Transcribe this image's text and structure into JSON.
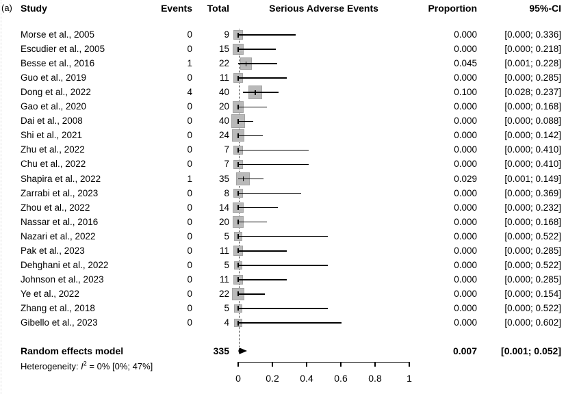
{
  "figure": {
    "panel_label": "(a)",
    "columns": {
      "study": "Study",
      "events": "Events",
      "total": "Total",
      "plot": "Serious Adverse Events",
      "proportion": "Proportion",
      "ci": "95%-CI"
    }
  },
  "chart_data": {
    "type": "forest",
    "title": "Serious Adverse Events",
    "x_axis": {
      "range": [
        0,
        1
      ],
      "ticks": [
        0,
        0.2,
        0.4,
        0.6,
        0.8,
        1
      ],
      "tick_labels": [
        "0",
        "0.2",
        "0.4",
        "0.6",
        "0.8",
        "1"
      ]
    },
    "reference_line": 0.007,
    "studies": [
      {
        "name": "Morse et al., 2005",
        "events": "0",
        "total": "9",
        "proportion": 0.0,
        "ci_lower": 0.0,
        "ci_upper": 0.336,
        "proportion_label": "0.000",
        "ci_label": "[0.000; 0.336]"
      },
      {
        "name": "Escudier et al., 2005",
        "events": "0",
        "total": "15",
        "proportion": 0.0,
        "ci_lower": 0.0,
        "ci_upper": 0.218,
        "proportion_label": "0.000",
        "ci_label": "[0.000; 0.218]"
      },
      {
        "name": "Besse et al., 2016",
        "events": "1",
        "total": "22",
        "proportion": 0.045,
        "ci_lower": 0.001,
        "ci_upper": 0.228,
        "proportion_label": "0.045",
        "ci_label": "[0.001; 0.228]"
      },
      {
        "name": "Guo et al., 2019",
        "events": "0",
        "total": "11",
        "proportion": 0.0,
        "ci_lower": 0.0,
        "ci_upper": 0.285,
        "proportion_label": "0.000",
        "ci_label": "[0.000; 0.285]"
      },
      {
        "name": "Dong et al., 2022",
        "events": "4",
        "total": "40",
        "proportion": 0.1,
        "ci_lower": 0.028,
        "ci_upper": 0.237,
        "proportion_label": "0.100",
        "ci_label": "[0.028; 0.237]"
      },
      {
        "name": "Gao et al., 2020",
        "events": "0",
        "total": "20",
        "proportion": 0.0,
        "ci_lower": 0.0,
        "ci_upper": 0.168,
        "proportion_label": "0.000",
        "ci_label": "[0.000; 0.168]"
      },
      {
        "name": "Dai et al., 2008",
        "events": "0",
        "total": "40",
        "proportion": 0.0,
        "ci_lower": 0.0,
        "ci_upper": 0.088,
        "proportion_label": "0.000",
        "ci_label": "[0.000; 0.088]"
      },
      {
        "name": "Shi et al., 2021",
        "events": "0",
        "total": "24",
        "proportion": 0.0,
        "ci_lower": 0.0,
        "ci_upper": 0.142,
        "proportion_label": "0.000",
        "ci_label": "[0.000; 0.142]"
      },
      {
        "name": "Zhu et al., 2022",
        "events": "0",
        "total": "7",
        "proportion": 0.0,
        "ci_lower": 0.0,
        "ci_upper": 0.41,
        "proportion_label": "0.000",
        "ci_label": "[0.000; 0.410]"
      },
      {
        "name": "Chu et al., 2022",
        "events": "0",
        "total": "7",
        "proportion": 0.0,
        "ci_lower": 0.0,
        "ci_upper": 0.41,
        "proportion_label": "0.000",
        "ci_label": "[0.000; 0.410]"
      },
      {
        "name": "Shapira et al., 2022",
        "events": "1",
        "total": "35",
        "proportion": 0.029,
        "ci_lower": 0.001,
        "ci_upper": 0.149,
        "proportion_label": "0.029",
        "ci_label": "[0.001; 0.149]"
      },
      {
        "name": "Zarrabi et al., 2023",
        "events": "0",
        "total": "8",
        "proportion": 0.0,
        "ci_lower": 0.0,
        "ci_upper": 0.369,
        "proportion_label": "0.000",
        "ci_label": "[0.000; 0.369]"
      },
      {
        "name": "Zhou et al., 2022",
        "events": "0",
        "total": "14",
        "proportion": 0.0,
        "ci_lower": 0.0,
        "ci_upper": 0.232,
        "proportion_label": "0.000",
        "ci_label": "[0.000; 0.232]"
      },
      {
        "name": "Nassar et al., 2016",
        "events": "0",
        "total": "20",
        "proportion": 0.0,
        "ci_lower": 0.0,
        "ci_upper": 0.168,
        "proportion_label": "0.000",
        "ci_label": "[0.000; 0.168]"
      },
      {
        "name": "Nazari et al., 2022",
        "events": "0",
        "total": "5",
        "proportion": 0.0,
        "ci_lower": 0.0,
        "ci_upper": 0.522,
        "proportion_label": "0.000",
        "ci_label": "[0.000; 0.522]"
      },
      {
        "name": "Pak et al., 2023",
        "events": "0",
        "total": "11",
        "proportion": 0.0,
        "ci_lower": 0.0,
        "ci_upper": 0.285,
        "proportion_label": "0.000",
        "ci_label": "[0.000; 0.285]"
      },
      {
        "name": "Dehghani et al., 2022",
        "events": "0",
        "total": "5",
        "proportion": 0.0,
        "ci_lower": 0.0,
        "ci_upper": 0.522,
        "proportion_label": "0.000",
        "ci_label": "[0.000; 0.522]"
      },
      {
        "name": "Johnson et al., 2023",
        "events": "0",
        "total": "11",
        "proportion": 0.0,
        "ci_lower": 0.0,
        "ci_upper": 0.285,
        "proportion_label": "0.000",
        "ci_label": "[0.000; 0.285]"
      },
      {
        "name": "Ye et al., 2022",
        "events": "0",
        "total": "22",
        "proportion": 0.0,
        "ci_lower": 0.0,
        "ci_upper": 0.154,
        "proportion_label": "0.000",
        "ci_label": "[0.000; 0.154]"
      },
      {
        "name": "Zhang et al., 2018",
        "events": "0",
        "total": "5",
        "proportion": 0.0,
        "ci_lower": 0.0,
        "ci_upper": 0.522,
        "proportion_label": "0.000",
        "ci_label": "[0.000; 0.522]"
      },
      {
        "name": "Gibello et al., 2023",
        "events": "0",
        "total": "4",
        "proportion": 0.0,
        "ci_lower": 0.0,
        "ci_upper": 0.602,
        "proportion_label": "0.000",
        "ci_label": "[0.000; 0.602]"
      }
    ],
    "pooled": {
      "label": "Random effects model",
      "total": "335",
      "proportion": 0.007,
      "ci_lower": 0.001,
      "ci_upper": 0.052,
      "proportion_label": "0.007",
      "ci_label": "[0.001; 0.052]"
    },
    "heterogeneity": {
      "prefix": "Heterogeneity: ",
      "stat": "I",
      "sup": "2",
      "rest": " = 0% [0%; 47%]"
    },
    "colors": {
      "square_fill": "#b9b9b9",
      "square_border": "#a3a3a3",
      "line": "#000000",
      "reference": "#2b2b2b"
    }
  }
}
